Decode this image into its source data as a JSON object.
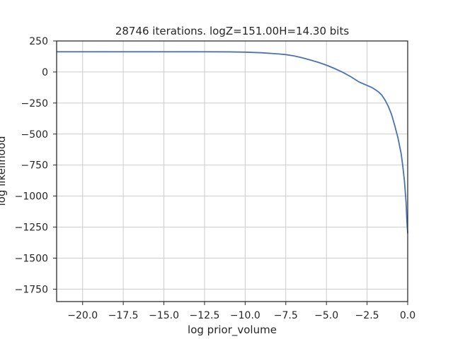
{
  "chart_data": {
    "type": "line",
    "title": "28746 iterations. logZ=151.00H=14.30 bits",
    "xlabel": "log prior_volume",
    "ylabel": "log likelihood",
    "xlim": [
      -21.6,
      0.0
    ],
    "ylim": [
      -1850,
      250
    ],
    "xticks": [
      -20.0,
      -17.5,
      -15.0,
      -12.5,
      -10.0,
      -7.5,
      -5.0,
      -2.5,
      0.0
    ],
    "xtick_labels": [
      "−20.0",
      "−17.5",
      "−15.0",
      "−12.5",
      "−10.0",
      "−7.5",
      "−5.0",
      "−2.5",
      "0.0"
    ],
    "yticks": [
      250,
      0,
      -250,
      -500,
      -750,
      -1000,
      -1250,
      -1500,
      -1750
    ],
    "ytick_labels": [
      "250",
      "0",
      "−250",
      "−500",
      "−750",
      "−1000",
      "−1250",
      "−1500",
      "−1750"
    ],
    "grid": true,
    "legend": false,
    "series": [
      {
        "color": "#4c72b0",
        "x": [
          -21.6,
          -20,
          -17.5,
          -15,
          -12.5,
          -11,
          -10,
          -9,
          -8,
          -7.5,
          -7,
          -6.5,
          -6,
          -5.5,
          -5,
          -4.5,
          -4,
          -3.5,
          -3,
          -2.5,
          -2.2,
          -2,
          -1.8,
          -1.6,
          -1.4,
          -1.2,
          -1,
          -0.8,
          -0.6,
          -0.4,
          -0.3,
          -0.2,
          -0.1,
          -0.05,
          0
        ],
        "y": [
          163,
          163,
          163,
          163,
          163,
          162,
          160,
          155,
          146,
          140,
          130,
          115,
          97,
          78,
          55,
          28,
          -2,
          -38,
          -80,
          -108,
          -125,
          -142,
          -160,
          -185,
          -225,
          -275,
          -340,
          -430,
          -530,
          -660,
          -760,
          -880,
          -1050,
          -1200,
          -1300
        ]
      }
    ]
  }
}
